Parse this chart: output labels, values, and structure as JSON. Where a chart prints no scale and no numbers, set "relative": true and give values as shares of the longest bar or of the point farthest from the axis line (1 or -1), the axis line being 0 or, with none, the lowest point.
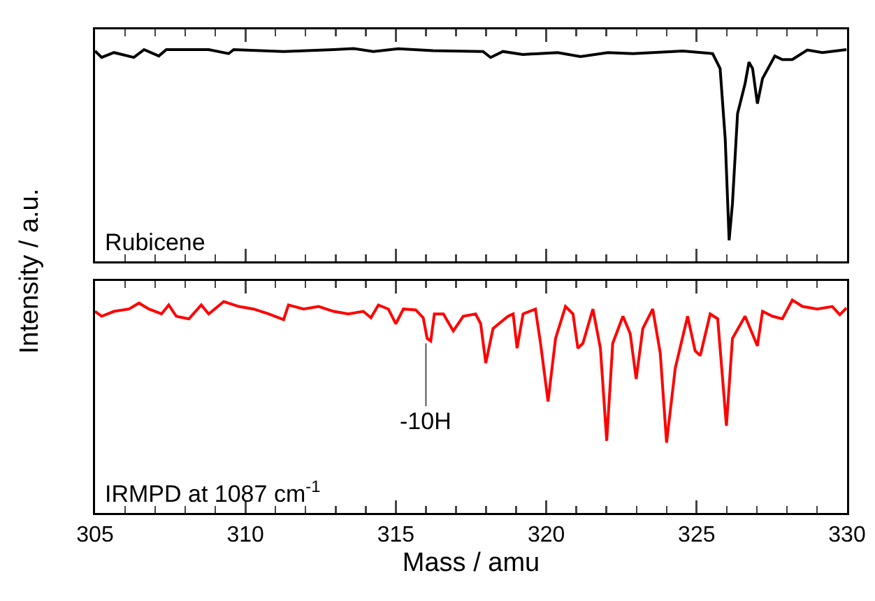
{
  "chart_data": [
    {
      "type": "line",
      "relative": true,
      "ylabel": "Intensity / a.u.",
      "xlim": [
        305,
        330
      ],
      "xticks": [
        305,
        310,
        315,
        320,
        325,
        330
      ],
      "tick_labels": false,
      "annotations": [
        "Rubicene"
      ],
      "marker": "none",
      "line_style": "solid",
      "series": [
        {
          "color": "#000000",
          "x": [
            305.0,
            305.22,
            305.63,
            306.29,
            306.63,
            307.12,
            307.37,
            308.78,
            309.44,
            309.61,
            311.27,
            312.93,
            313.59,
            314.25,
            315.08,
            316.24,
            317.9,
            318.15,
            318.56,
            319.22,
            320.38,
            321.14,
            322.05,
            322.88,
            324.54,
            325.53,
            325.78,
            325.95,
            326.08,
            326.19,
            326.36,
            326.61,
            326.74,
            326.86,
            327.02,
            327.19,
            327.6,
            327.85,
            328.18,
            328.68,
            329.18,
            329.98
          ],
          "values": [
            0.988,
            0.958,
            0.981,
            0.958,
            0.995,
            0.965,
            0.995,
            0.995,
            0.976,
            0.995,
            0.986,
            0.995,
            1.0,
            0.986,
            0.999,
            0.99,
            0.986,
            0.958,
            0.986,
            0.972,
            0.981,
            0.962,
            0.981,
            0.976,
            0.988,
            0.976,
            0.906,
            0.576,
            0.099,
            0.271,
            0.694,
            0.835,
            0.936,
            0.906,
            0.741,
            0.859,
            0.965,
            0.948,
            0.948,
            0.993,
            0.981,
            0.995
          ]
        }
      ]
    },
    {
      "type": "line",
      "relative": true,
      "xlabel": "Mass / amu",
      "xlim": [
        305,
        330
      ],
      "xticks": [
        305,
        310,
        315,
        320,
        325,
        330
      ],
      "tick_labels": "x",
      "marker": "none",
      "line_style": "solid",
      "annotations": [
        "IRMPD at 1087 cm$^{-1}$",
        {
          "text": "-10H",
          "x": 316,
          "y": 0.81
        }
      ],
      "series": [
        {
          "color": "#ff0000",
          "x": [
            305.0,
            305.22,
            305.63,
            306.13,
            306.46,
            306.79,
            307.21,
            307.45,
            307.7,
            308.12,
            308.53,
            308.78,
            309.28,
            309.78,
            310.27,
            310.77,
            311.27,
            311.43,
            311.93,
            312.43,
            312.93,
            313.42,
            313.92,
            314.17,
            314.42,
            314.75,
            315.0,
            315.25,
            315.66,
            315.91,
            316.04,
            316.16,
            316.28,
            316.58,
            316.91,
            317.24,
            317.65,
            317.82,
            317.99,
            318.23,
            318.73,
            318.9,
            319.03,
            319.23,
            319.64,
            319.81,
            320.06,
            320.31,
            320.64,
            320.89,
            321.05,
            321.22,
            321.55,
            321.8,
            322.01,
            322.21,
            322.55,
            322.79,
            322.99,
            323.21,
            323.54,
            323.79,
            324.0,
            324.29,
            324.7,
            324.95,
            325.12,
            325.45,
            325.7,
            325.99,
            326.19,
            326.61,
            327.02,
            327.19,
            327.52,
            327.85,
            328.18,
            328.52,
            329.01,
            329.51,
            329.76,
            329.98
          ],
          "values": [
            0.947,
            0.924,
            0.947,
            0.958,
            0.986,
            0.958,
            0.935,
            0.977,
            0.924,
            0.912,
            0.977,
            0.935,
            0.993,
            0.97,
            0.958,
            0.935,
            0.908,
            0.977,
            0.958,
            0.97,
            0.947,
            0.935,
            0.947,
            0.917,
            0.977,
            0.958,
            0.889,
            0.958,
            0.954,
            0.917,
            0.82,
            0.808,
            0.935,
            0.935,
            0.855,
            0.924,
            0.935,
            0.889,
            0.704,
            0.866,
            0.924,
            0.935,
            0.774,
            0.935,
            0.958,
            0.797,
            0.524,
            0.82,
            0.97,
            0.935,
            0.774,
            0.797,
            0.958,
            0.774,
            0.339,
            0.797,
            0.924,
            0.843,
            0.63,
            0.866,
            0.958,
            0.751,
            0.33,
            0.681,
            0.924,
            0.762,
            0.739,
            0.935,
            0.912,
            0.409,
            0.82,
            0.924,
            0.785,
            0.947,
            0.924,
            0.912,
            1.0,
            0.97,
            0.958,
            0.97,
            0.931,
            0.963
          ]
        }
      ]
    }
  ]
}
